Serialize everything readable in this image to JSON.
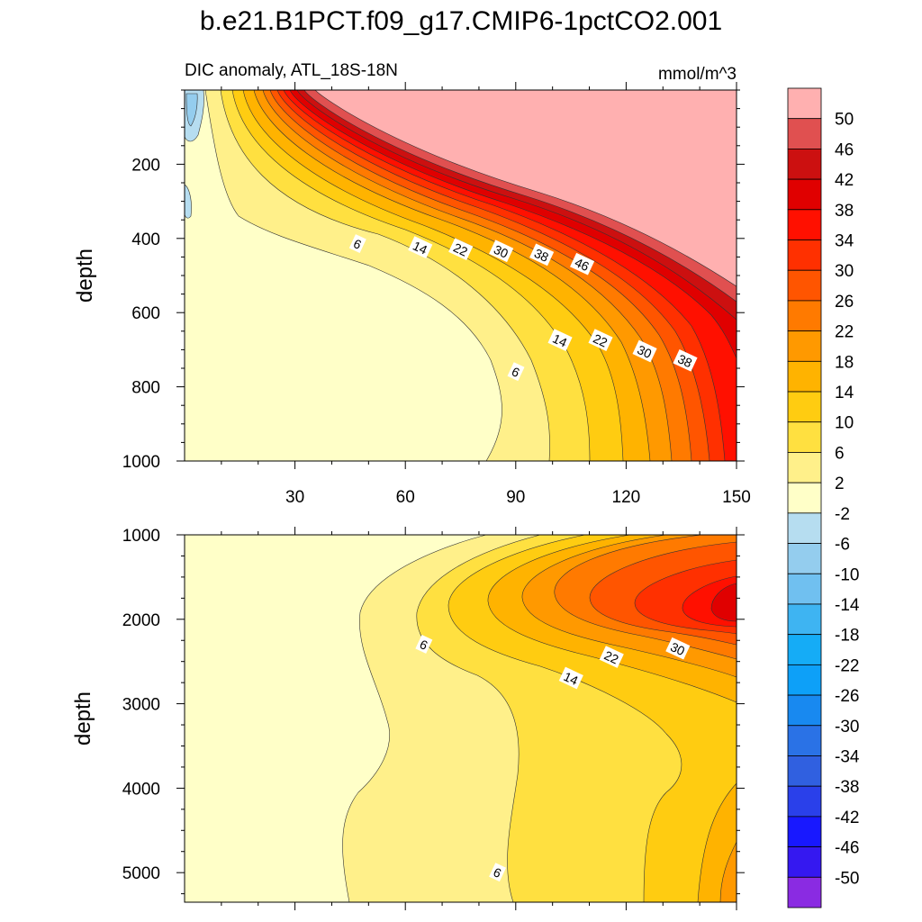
{
  "figure": {
    "title": "b.e21.B1PCT.f09_g17.CMIP6-1pctCO2.001",
    "subtitle_left": "DIC anomaly, ATL_18S-18N",
    "subtitle_right": "mmol/m^3"
  },
  "chart_data": [
    {
      "type": "contour",
      "panel": "upper",
      "title": "DIC anomaly, ATL_18S-18N",
      "units": "mmol/m^3",
      "xlabel": "",
      "ylabel": "depth",
      "xlim": [
        0,
        150
      ],
      "ylim": [
        1000,
        0
      ],
      "xticks": [
        30,
        60,
        90,
        120,
        150
      ],
      "yticks": [
        200,
        400,
        600,
        800,
        1000
      ],
      "contour_labels": [
        {
          "x": 47,
          "depth": 415,
          "value": 6
        },
        {
          "x": 64,
          "depth": 425,
          "value": 14
        },
        {
          "x": 75,
          "depth": 430,
          "value": 22
        },
        {
          "x": 86,
          "depth": 435,
          "value": 30
        },
        {
          "x": 97,
          "depth": 445,
          "value": 38
        },
        {
          "x": 108,
          "depth": 470,
          "value": 46
        },
        {
          "x": 90,
          "depth": 760,
          "value": 6
        },
        {
          "x": 102,
          "depth": 675,
          "value": 14
        },
        {
          "x": 113,
          "depth": 675,
          "value": 22
        },
        {
          "x": 125,
          "depth": 705,
          "value": 30
        },
        {
          "x": 136,
          "depth": 730,
          "value": 38
        }
      ]
    },
    {
      "type": "contour",
      "panel": "lower",
      "title": "",
      "units": "mmol/m^3",
      "xlabel": "",
      "ylabel": "depth",
      "xlim": [
        0,
        150
      ],
      "ylim": [
        5350,
        1000
      ],
      "xticks": [
        30,
        60,
        90,
        120,
        150
      ],
      "yticks": [
        1000,
        2000,
        3000,
        4000,
        5000
      ],
      "contour_labels": [
        {
          "x": 65,
          "depth": 2300,
          "value": 6
        },
        {
          "x": 105,
          "depth": 2700,
          "value": 14
        },
        {
          "x": 116,
          "depth": 2450,
          "value": 22
        },
        {
          "x": 134,
          "depth": 2350,
          "value": 30
        },
        {
          "x": 85,
          "depth": 5000,
          "value": 6
        }
      ]
    }
  ],
  "colorbar": {
    "levels": [
      50,
      46,
      42,
      38,
      34,
      30,
      26,
      22,
      18,
      14,
      10,
      6,
      2,
      -2,
      -6,
      -10,
      -14,
      -18,
      -22,
      -26,
      -30,
      -34,
      -38,
      -42,
      -46,
      -50
    ],
    "colors": [
      "#ffb0b0",
      "#e05050",
      "#cc1010",
      "#e00000",
      "#ff1000",
      "#ff3000",
      "#ff5500",
      "#ff7a00",
      "#ff9900",
      "#ffb300",
      "#ffcc11",
      "#ffe040",
      "#fff08a",
      "#ffffc8",
      "#b6ddf0",
      "#94cdee",
      "#70c0f0",
      "#3eb4f2",
      "#15acf6",
      "#0da0f8",
      "#1889f0",
      "#2a72e6",
      "#3060e0",
      "#2a40ea",
      "#1818ff",
      "#3518f0",
      "#8a2be2"
    ]
  },
  "colors": {
    "c_neg6": "#b6ddf0",
    "c_neg2": "#94cdee",
    "c_2": "#ffffc8",
    "c_6": "#fff08a",
    "c_10": "#ffe040",
    "c_14": "#ffcc11",
    "c_18": "#ffb300",
    "c_22": "#ff9900",
    "c_26": "#ff7a00",
    "c_30": "#ff5500",
    "c_34": "#ff3000",
    "c_38": "#ff1000",
    "c_42": "#e00000",
    "c_46": "#cc1010",
    "c_50": "#e05050",
    "c_top": "#ffb0b0"
  }
}
